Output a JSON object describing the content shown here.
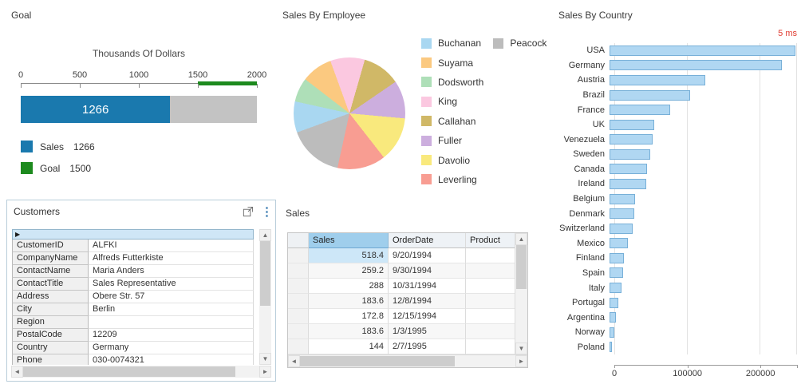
{
  "icons": {
    "scroll_up": "▲",
    "scroll_down": "▼",
    "scroll_left": "◄",
    "scroll_right": "►",
    "record_pointer": "▶",
    "menu_dots": "⋮"
  },
  "chart_data": [
    {
      "id": "goal-bullet",
      "type": "bullet",
      "title": "Goal",
      "scale_title": "Thousands Of Dollars",
      "xlim": [
        0,
        2000
      ],
      "xticks": [
        0,
        500,
        1000,
        1500,
        2000
      ],
      "sales": 1266,
      "goal": 1500,
      "bar_label": "1266",
      "colors": {
        "sales": "#1a79ae",
        "goal": "#1d8a1e",
        "track": "#c3c3c3"
      },
      "legend": [
        {
          "label": "Sales",
          "value": "1266",
          "color": "#1a79ae"
        },
        {
          "label": "Goal",
          "value": "1500",
          "color": "#1d8a1e"
        }
      ]
    },
    {
      "id": "sales-by-employee",
      "type": "pie",
      "title": "Sales By Employee",
      "value_unit": "percent_estimate",
      "slices": [
        {
          "name": "Buchanan",
          "value": 9,
          "color": "#a9d7f1"
        },
        {
          "name": "Peacock",
          "value": 16,
          "color": "#bcbcbc"
        },
        {
          "name": "Suyama",
          "value": 9,
          "color": "#fbc980"
        },
        {
          "name": "Dodsworth",
          "value": 7,
          "color": "#aedfb8"
        },
        {
          "name": "King",
          "value": 10,
          "color": "#fbc8e0"
        },
        {
          "name": "Callahan",
          "value": 11,
          "color": "#d0b867"
        },
        {
          "name": "Fuller",
          "value": 11,
          "color": "#ccaede"
        },
        {
          "name": "Davolio",
          "value": 13,
          "color": "#f9e97d"
        },
        {
          "name": "Leverling",
          "value": 14,
          "color": "#f89d92"
        }
      ],
      "draw_order": [
        "King",
        "Callahan",
        "Fuller",
        "Davolio",
        "Leverling",
        "Peacock",
        "Buchanan",
        "Dodsworth",
        "Suyama"
      ],
      "legend_order": [
        "Buchanan",
        "Suyama",
        "Dodsworth",
        "King",
        "Callahan",
        "Fuller",
        "Davolio",
        "Leverling",
        "Peacock"
      ]
    },
    {
      "id": "sales-by-country",
      "type": "bar",
      "orientation": "horizontal",
      "title": "Sales By Country",
      "badge": "5 ms",
      "badge_color": "#e03b30",
      "categories": [
        "USA",
        "Germany",
        "Austria",
        "Brazil",
        "France",
        "UK",
        "Venezuela",
        "Sweden",
        "Canada",
        "Ireland",
        "Belgium",
        "Denmark",
        "Switzerland",
        "Mexico",
        "Finland",
        "Spain",
        "Italy",
        "Portugal",
        "Argentina",
        "Norway",
        "Poland"
      ],
      "values": [
        248000,
        230000,
        128000,
        107000,
        81000,
        60000,
        57000,
        54000,
        50000,
        49000,
        34000,
        33000,
        31000,
        24000,
        19000,
        18000,
        16000,
        12000,
        9000,
        6000,
        3500
      ],
      "xticks": [
        0,
        100000,
        200000
      ],
      "xlim": [
        0,
        250000
      ],
      "bar_color": "#b0d7f2",
      "bar_border": "#78b0d8"
    }
  ],
  "customers": {
    "title": "Customers",
    "fields": [
      {
        "label": "CustomerID",
        "value": "ALFKI"
      },
      {
        "label": "CompanyName",
        "value": "Alfreds Futterkiste"
      },
      {
        "label": "ContactName",
        "value": "Maria Anders"
      },
      {
        "label": "ContactTitle",
        "value": "Sales Representative"
      },
      {
        "label": "Address",
        "value": "Obere Str. 57"
      },
      {
        "label": "City",
        "value": "Berlin"
      },
      {
        "label": "Region",
        "value": ""
      },
      {
        "label": "PostalCode",
        "value": "12209"
      },
      {
        "label": "Country",
        "value": "Germany"
      },
      {
        "label": "Phone",
        "value": "030-0074321"
      }
    ]
  },
  "sales_grid": {
    "title": "Sales",
    "columns": [
      "Sales",
      "OrderDate",
      "Product"
    ],
    "rows": [
      [
        "518.4",
        "9/20/1994",
        ""
      ],
      [
        "259.2",
        "9/30/1994",
        ""
      ],
      [
        "288",
        "10/31/1994",
        ""
      ],
      [
        "183.6",
        "12/8/1994",
        ""
      ],
      [
        "172.8",
        "12/15/1994",
        ""
      ],
      [
        "183.6",
        "1/3/1995",
        ""
      ],
      [
        "144",
        "2/7/1995",
        ""
      ]
    ],
    "selected_cell": {
      "row": 0,
      "column": "Sales"
    }
  }
}
